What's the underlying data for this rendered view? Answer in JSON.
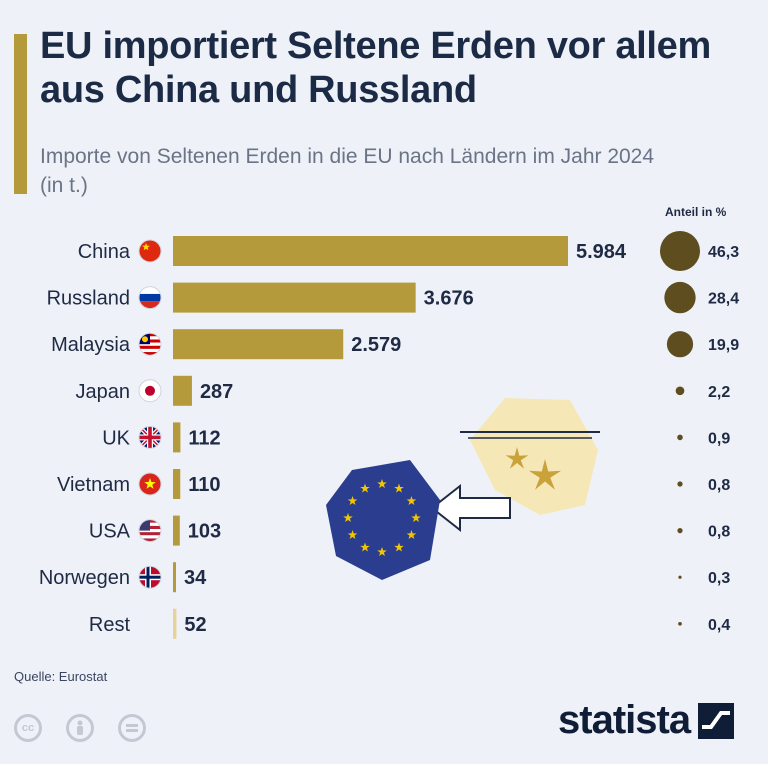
{
  "title": "EU importiert Seltene Erden vor allem aus China und Russland",
  "subtitle": "Importe von Seltenen Erden in die EU nach Ländern im Jahr 2024 (in t.)",
  "source": "Quelle: Eurostat",
  "brand": "statista",
  "colors": {
    "bar": "#b59a3c",
    "bar_light": "#e8d29a",
    "bubble": "#5e4d1f",
    "eu_blue": "#2a3d8f",
    "eu_star": "#f2c500",
    "sparkle_bg": "#f6e7b7",
    "sparkle": "#c9a33a"
  },
  "chart_data": {
    "type": "bar",
    "orientation": "horizontal",
    "title": "EU importiert Seltene Erden vor allem aus China und Russland",
    "subtitle": "Importe von Seltenen Erden in die EU nach Ländern im Jahr 2024 (in t.)",
    "share_label": "Anteil in %",
    "categories": [
      "China",
      "Russland",
      "Malaysia",
      "Japan",
      "UK",
      "Vietnam",
      "USA",
      "Norwegen",
      "Rest"
    ],
    "flags": [
      "flag-china",
      "flag-russia",
      "flag-malaysia",
      "flag-japan",
      "flag-uk",
      "flag-vietnam",
      "flag-usa",
      "flag-norway",
      ""
    ],
    "values": [
      5984,
      3676,
      2579,
      287,
      112,
      110,
      103,
      34,
      52
    ],
    "value_labels": [
      "5.984",
      "3.676",
      "2.579",
      "287",
      "112",
      "110",
      "103",
      "34",
      "52"
    ],
    "share": [
      46.3,
      28.4,
      19.9,
      2.2,
      0.9,
      0.8,
      0.8,
      0.3,
      0.4
    ],
    "share_labels": [
      "46,3",
      "28,4",
      "19,9",
      "2,2",
      "0,9",
      "0,8",
      "0,8",
      "0,3",
      "0,4"
    ],
    "xlim": [
      0,
      5984
    ]
  },
  "icons": {
    "eu_flag": "eu-flag-icon",
    "sparkle": "sparkle-icon",
    "arrow": "arrow-left-icon"
  }
}
